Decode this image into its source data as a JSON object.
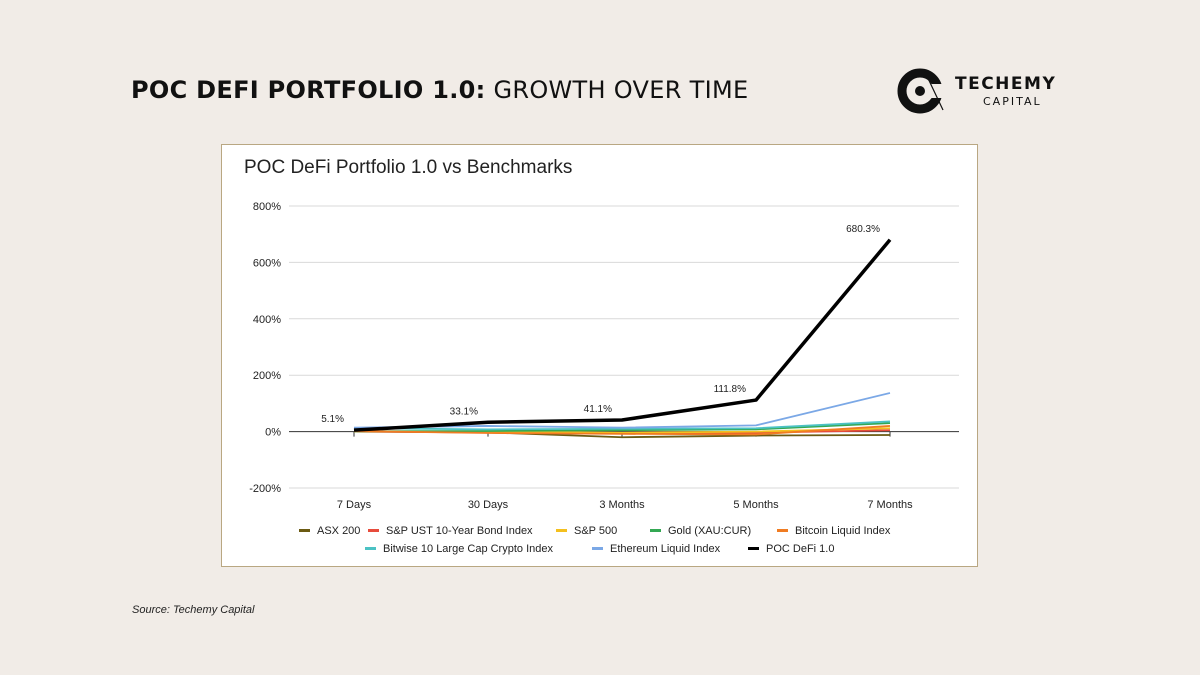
{
  "header": {
    "title_bold": "POC DEFI PORTFOLIO 1.0:",
    "title_light": "GROWTH OVER TIME"
  },
  "logo": {
    "name": "TECHEMY",
    "sub": "CAPITAL"
  },
  "footer": {
    "source": "Source: Techemy Capital"
  },
  "colors": {
    "background": "#f1ece7",
    "card_border": "#b9a782",
    "poc_line": "#000000"
  },
  "chart_data": {
    "type": "line",
    "title": "POC DeFi Portfolio 1.0 vs Benchmarks",
    "xlabel": "",
    "ylabel": "",
    "categories": [
      "7 Days",
      "30 Days",
      "3 Months",
      "5 Months",
      "7 Months"
    ],
    "ylim": [
      -200,
      800
    ],
    "yticks": [
      -200,
      0,
      200,
      400,
      600,
      800
    ],
    "ytick_labels": [
      "-200%",
      "0%",
      "200%",
      "400%",
      "600%",
      "800%"
    ],
    "grid": true,
    "legend_position": "bottom",
    "series": [
      {
        "name": "ASX 200",
        "color": "#6b5a12",
        "values": [
          0,
          -3,
          -20,
          -14,
          -12
        ]
      },
      {
        "name": "S&P UST 10-Year Bond Index",
        "color": "#e74c3c",
        "values": [
          0,
          -2,
          -6,
          -4,
          5
        ]
      },
      {
        "name": "S&P 500",
        "color": "#f4c01e",
        "values": [
          1,
          0,
          -4,
          0,
          12
        ]
      },
      {
        "name": "Gold (XAU:CUR)",
        "color": "#34a853",
        "values": [
          1,
          2,
          5,
          8,
          30
        ]
      },
      {
        "name": "Bitcoin Liquid Index",
        "color": "#f07c22",
        "values": [
          2,
          -5,
          -8,
          -10,
          20
        ]
      },
      {
        "name": "Bitwise 10 Large Cap Crypto Index",
        "color": "#4cc2c4",
        "values": [
          12,
          8,
          10,
          12,
          36
        ]
      },
      {
        "name": "Ethereum Liquid Index",
        "color": "#7ba8e6",
        "values": [
          14,
          20,
          14,
          22,
          137
        ]
      },
      {
        "name": "POC DeFi 1.0",
        "color": "#000000",
        "values": [
          5.1,
          33.1,
          41.1,
          111.8,
          680.3
        ],
        "labels": [
          "5.1%",
          "33.1%",
          "41.1%",
          "111.8%",
          "680.3%"
        ]
      }
    ]
  }
}
